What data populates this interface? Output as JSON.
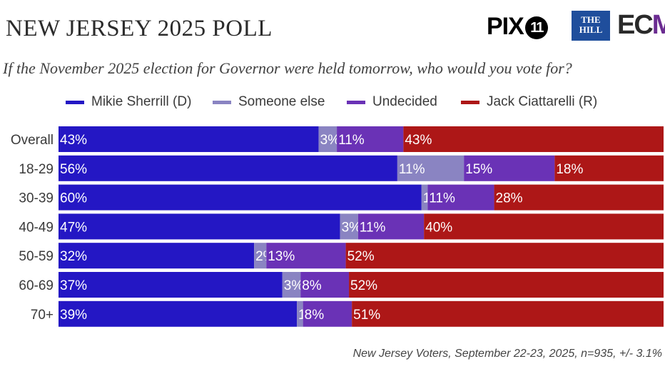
{
  "header": {
    "title": "NEW JERSEY 2025 POLL",
    "question": "If the November 2025 election for Governor were held tomorrow, who would you vote for?"
  },
  "logos": {
    "pix": "PIX",
    "pix_number": "11",
    "hill_line1": "THE",
    "hill_line2": "HILL",
    "ec": "EC",
    "ec_mark": "M"
  },
  "footnote": "New Jersey Voters, September 22-23, 2025, n=935, +/- 3.1%",
  "colors": {
    "sherrill": "#2417c4",
    "someone_else": "#8a84c2",
    "undecided": "#6a32b6",
    "ciattarelli": "#ad1717",
    "background": "#ffffff"
  },
  "chart_data": {
    "type": "bar",
    "orientation": "horizontal",
    "stacked": true,
    "title": "NEW JERSEY 2025 POLL",
    "subtitle": "If the November 2025 election for Governor were held tomorrow, who would you vote for?",
    "categories": [
      "Overall",
      "18-29",
      "30-39",
      "40-49",
      "50-59",
      "60-69",
      "70+"
    ],
    "series": [
      {
        "name": "Mikie Sherrill (D)",
        "values": [
          43,
          56,
          60,
          47,
          32,
          37,
          39
        ],
        "labels": [
          "43%",
          "56%",
          "60%",
          "47%",
          "32%",
          "37%",
          "39%"
        ]
      },
      {
        "name": "Someone else",
        "values": [
          3,
          11,
          1,
          3,
          2,
          3,
          1
        ],
        "labels": [
          "3%",
          "11%",
          "1%",
          "3%",
          "2%",
          "3%",
          "1%"
        ]
      },
      {
        "name": "Undecided",
        "values": [
          11,
          15,
          11,
          11,
          13,
          8,
          8
        ],
        "labels": [
          "11%",
          "15%",
          "11%",
          "11%",
          "13%",
          "8%",
          "8%"
        ]
      },
      {
        "name": "Jack Ciattarelli (R)",
        "values": [
          43,
          18,
          28,
          40,
          52,
          52,
          51
        ],
        "labels": [
          "43%",
          "18%",
          "28%",
          "40%",
          "52%",
          "52%",
          "51%"
        ]
      }
    ],
    "xlim": [
      0,
      100
    ],
    "xlabel": "",
    "ylabel": "",
    "legend": "top",
    "grid": false
  }
}
